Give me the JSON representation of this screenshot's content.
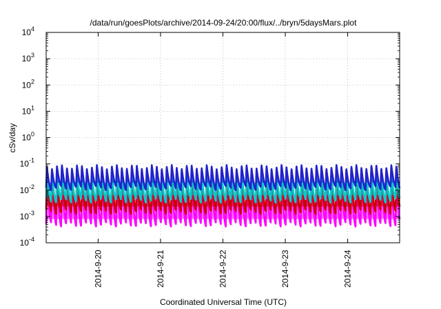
{
  "chart_data": {
    "type": "line",
    "title": "/data/run/goesPlots/archive/2014-09-24/20:00/flux/../bryn/5daysMars.plot",
    "xlabel": "Coordinated Universal Time (UTC)",
    "ylabel": "cSv/day",
    "yscale": "log",
    "ylim": [
      0.0001,
      10000
    ],
    "y_ticks": [
      {
        "value": 0.0001,
        "base": "10",
        "exp": "-4"
      },
      {
        "value": 0.001,
        "base": "10",
        "exp": "-3"
      },
      {
        "value": 0.01,
        "base": "10",
        "exp": "-2"
      },
      {
        "value": 0.1,
        "base": "10",
        "exp": "-1"
      },
      {
        "value": 1,
        "base": "10",
        "exp": "0"
      },
      {
        "value": 10,
        "base": "10",
        "exp": "1"
      },
      {
        "value": 100,
        "base": "10",
        "exp": "2"
      },
      {
        "value": 1000,
        "base": "10",
        "exp": "3"
      },
      {
        "value": 10000,
        "base": "10",
        "exp": "4"
      }
    ],
    "x_range_days": [
      "2014-09-19 04:00",
      "2014-09-24 20:00"
    ],
    "x_ticks": [
      "2014-9-20",
      "2014-9-21",
      "2014-9-22",
      "2014-9-23",
      "2014-9-24"
    ],
    "grid": true,
    "legend": "none",
    "cycles_per_day": 12.5,
    "series": [
      {
        "color": "#ff00ff",
        "peak": 0.03,
        "trough": 0.0005
      },
      {
        "color": "#cc0000",
        "peak": 0.06,
        "trough": 0.0015
      },
      {
        "color": "#00cccc",
        "peak": 0.05,
        "trough": 0.004
      },
      {
        "color": "#2222cc",
        "peak": 0.08,
        "trough": 0.012
      }
    ]
  }
}
